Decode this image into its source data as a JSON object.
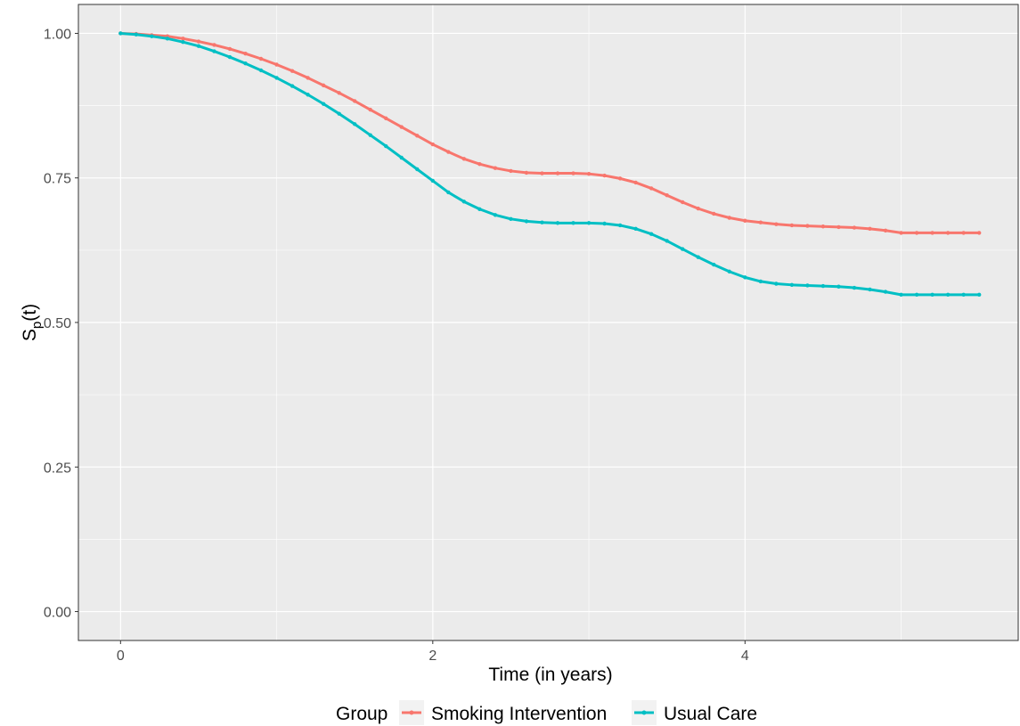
{
  "chart_data": {
    "type": "line",
    "xlabel": "Time (in years)",
    "ylabel": {
      "main": "S",
      "subscript": "p",
      "suffix": "(t)"
    },
    "xlim": [
      -0.27,
      5.75
    ],
    "ylim": [
      -0.05,
      1.05
    ],
    "x_ticks": [
      0,
      2,
      4
    ],
    "x_tick_labels": [
      "0",
      "2",
      "4"
    ],
    "x_minor_ticks": [
      1,
      3,
      5
    ],
    "y_ticks": [
      0,
      0.25,
      0.5,
      0.75,
      1.0
    ],
    "y_tick_labels": [
      "0.00",
      "0.25",
      "0.50",
      "0.75",
      "1.00"
    ],
    "y_minor_ticks": [
      0.125,
      0.375,
      0.625,
      0.875
    ],
    "grid": true,
    "legend": {
      "title": "Group",
      "position": "bottom"
    },
    "series": [
      {
        "name": "Smoking Intervention",
        "color": "#F8766D",
        "x": [
          0,
          0.1,
          0.2,
          0.3,
          0.4,
          0.5,
          0.6,
          0.7,
          0.8,
          0.9,
          1.0,
          1.1,
          1.2,
          1.3,
          1.4,
          1.5,
          1.6,
          1.7,
          1.8,
          1.9,
          2.0,
          2.1,
          2.2,
          2.3,
          2.4,
          2.5,
          2.6,
          2.7,
          2.8,
          2.9,
          3.0,
          3.1,
          3.2,
          3.3,
          3.4,
          3.5,
          3.6,
          3.7,
          3.8,
          3.9,
          4.0,
          4.1,
          4.2,
          4.3,
          4.4,
          4.5,
          4.6,
          4.7,
          4.8,
          4.9,
          5.0,
          5.1,
          5.2,
          5.3,
          5.4,
          5.5
        ],
        "y": [
          1.0,
          0.999,
          0.997,
          0.995,
          0.991,
          0.986,
          0.98,
          0.973,
          0.965,
          0.956,
          0.946,
          0.935,
          0.923,
          0.91,
          0.897,
          0.883,
          0.868,
          0.853,
          0.838,
          0.823,
          0.808,
          0.795,
          0.783,
          0.774,
          0.767,
          0.762,
          0.759,
          0.758,
          0.758,
          0.758,
          0.757,
          0.754,
          0.749,
          0.742,
          0.732,
          0.72,
          0.708,
          0.697,
          0.688,
          0.681,
          0.676,
          0.673,
          0.67,
          0.668,
          0.667,
          0.666,
          0.665,
          0.664,
          0.662,
          0.659,
          0.655,
          0.655,
          0.655,
          0.655,
          0.655,
          0.655
        ]
      },
      {
        "name": "Usual Care",
        "color": "#00BFC4",
        "x": [
          0,
          0.1,
          0.2,
          0.3,
          0.4,
          0.5,
          0.6,
          0.7,
          0.8,
          0.9,
          1.0,
          1.1,
          1.2,
          1.3,
          1.4,
          1.5,
          1.6,
          1.7,
          1.8,
          1.9,
          2.0,
          2.1,
          2.2,
          2.3,
          2.4,
          2.5,
          2.6,
          2.7,
          2.8,
          2.9,
          3.0,
          3.1,
          3.2,
          3.3,
          3.4,
          3.5,
          3.6,
          3.7,
          3.8,
          3.9,
          4.0,
          4.1,
          4.2,
          4.3,
          4.4,
          4.5,
          4.6,
          4.7,
          4.8,
          4.9,
          5.0,
          5.1,
          5.2,
          5.3,
          5.4,
          5.5
        ],
        "y": [
          1.0,
          0.998,
          0.995,
          0.991,
          0.985,
          0.978,
          0.969,
          0.959,
          0.948,
          0.936,
          0.923,
          0.909,
          0.894,
          0.878,
          0.861,
          0.843,
          0.824,
          0.805,
          0.785,
          0.765,
          0.745,
          0.725,
          0.709,
          0.696,
          0.686,
          0.679,
          0.675,
          0.673,
          0.672,
          0.672,
          0.672,
          0.671,
          0.668,
          0.662,
          0.653,
          0.641,
          0.627,
          0.613,
          0.6,
          0.588,
          0.578,
          0.571,
          0.567,
          0.565,
          0.564,
          0.563,
          0.562,
          0.56,
          0.557,
          0.553,
          0.548,
          0.548,
          0.548,
          0.548,
          0.548,
          0.548
        ]
      }
    ]
  }
}
